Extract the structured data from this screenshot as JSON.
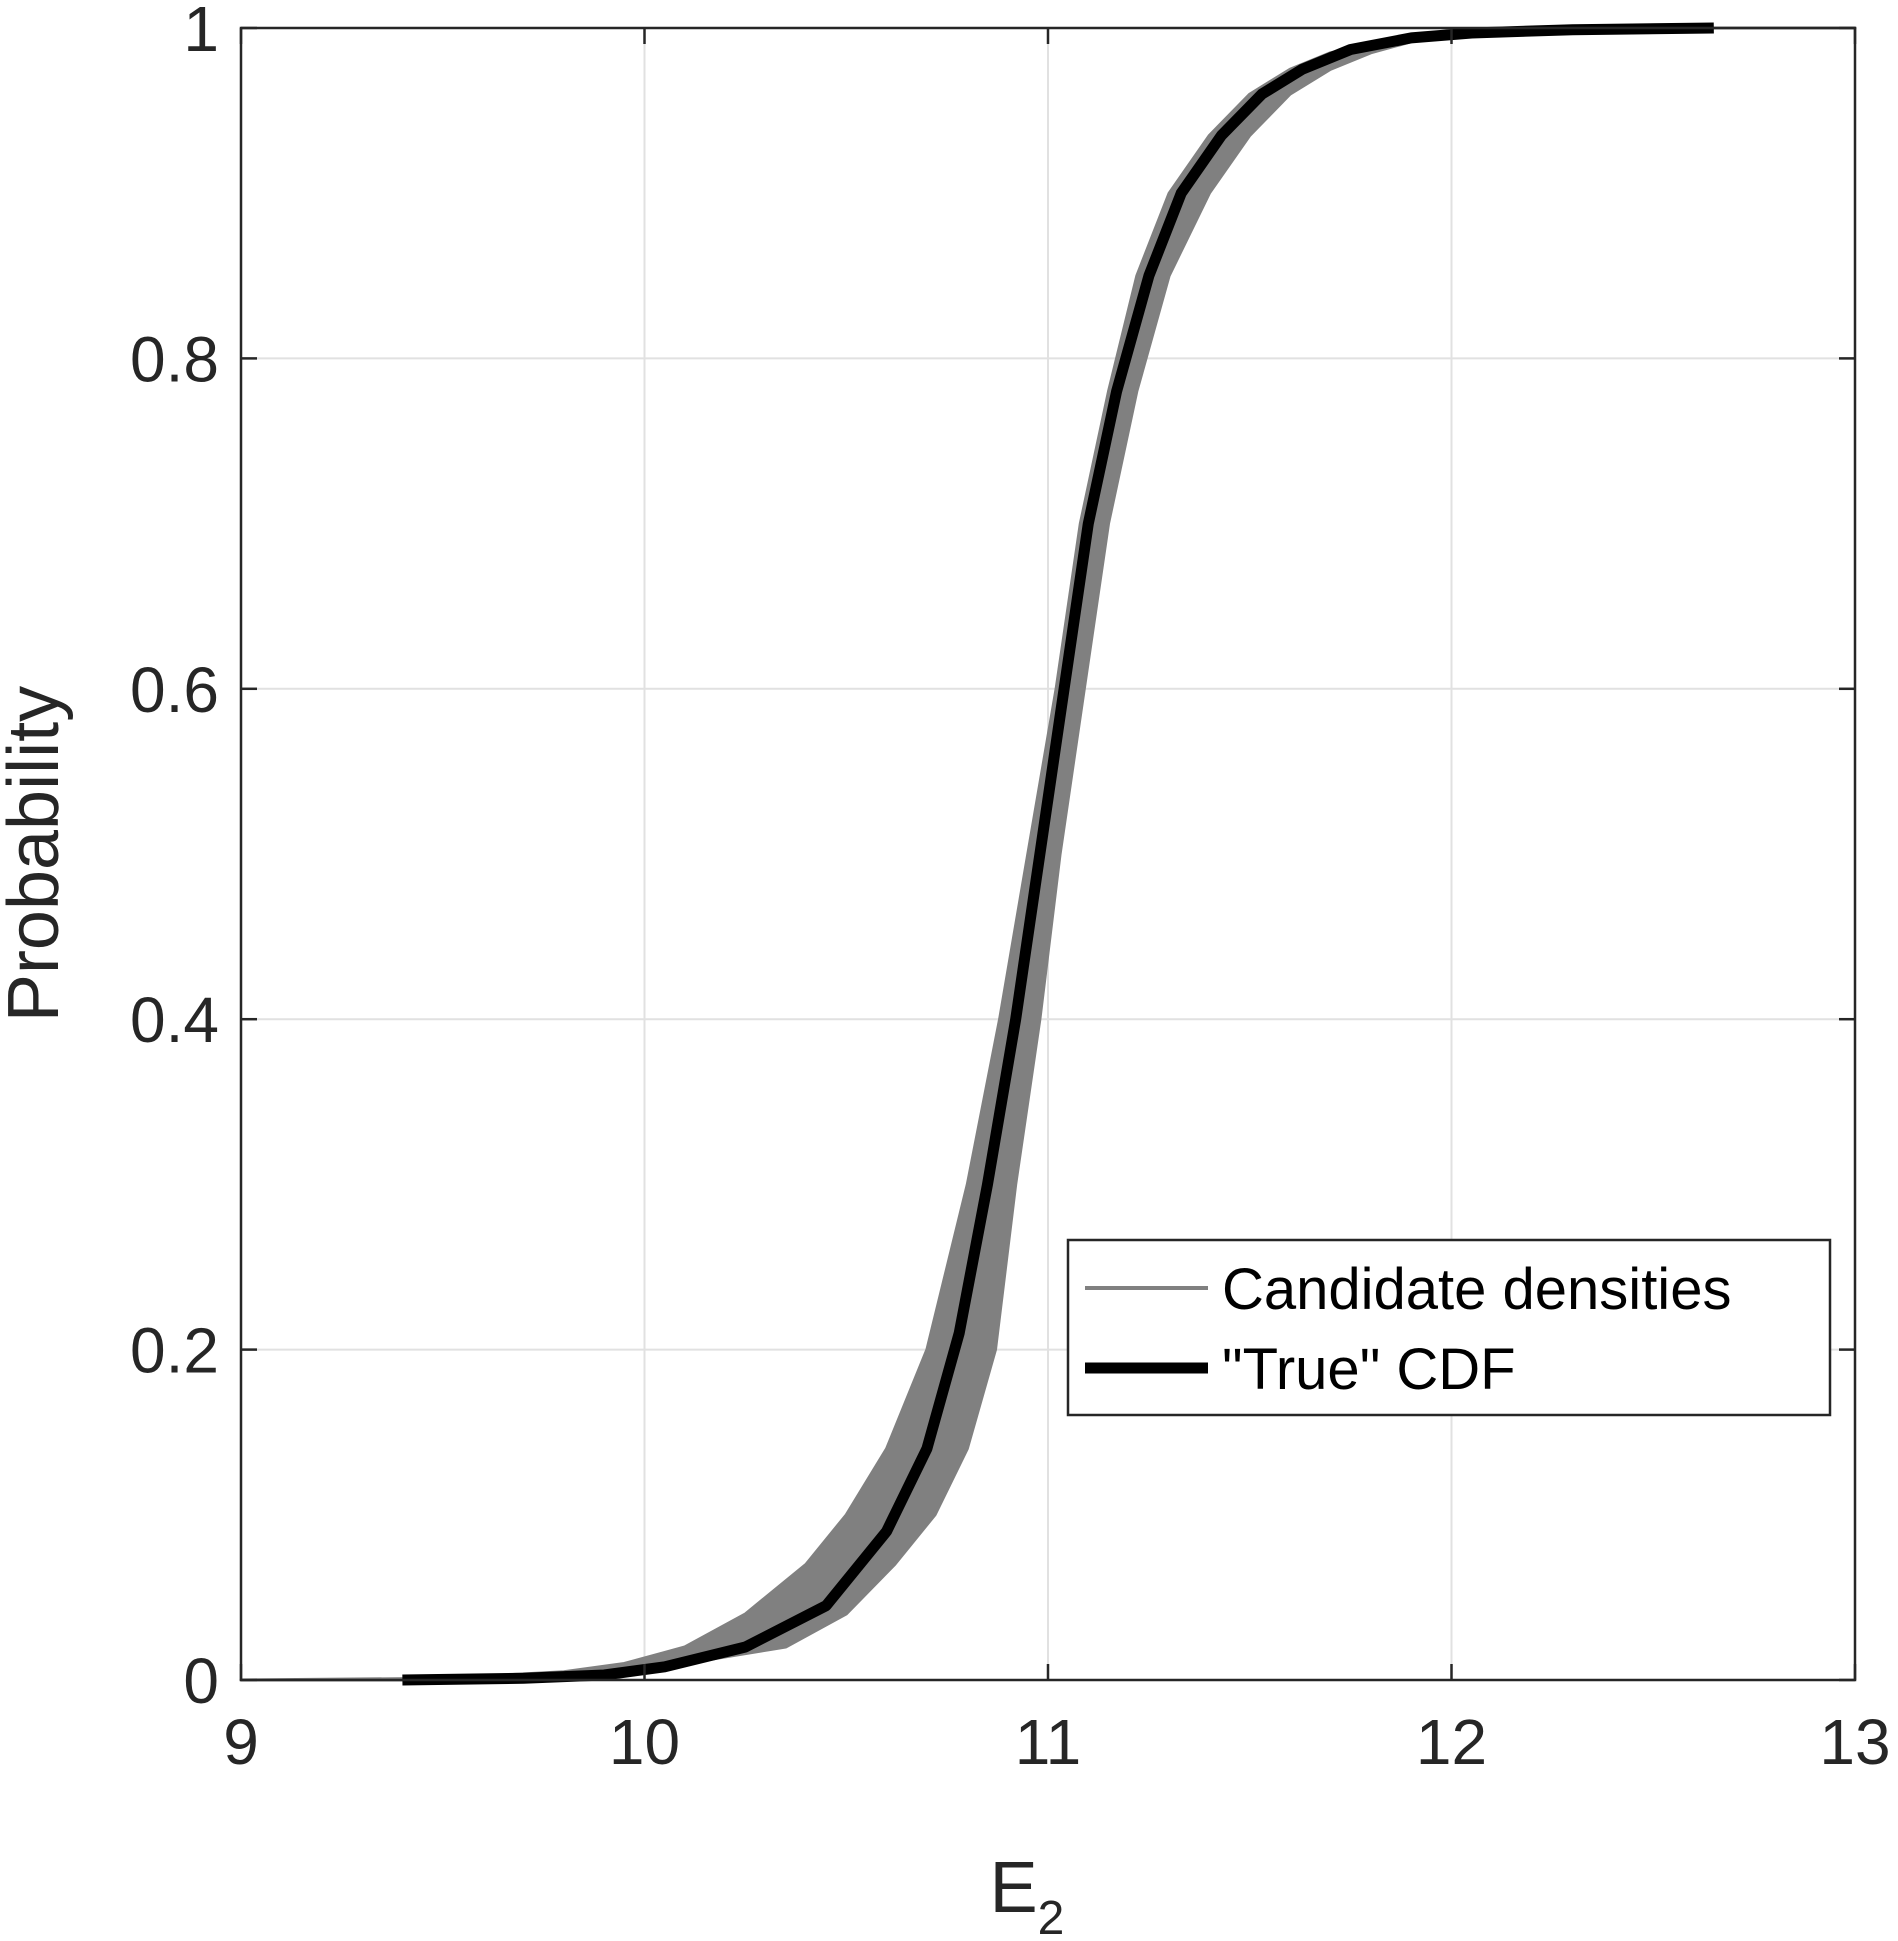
{
  "chart_data": {
    "type": "line",
    "xlabel": "E",
    "xlabel_subscript": "2",
    "ylabel": "Probability",
    "xlim": [
      9,
      13
    ],
    "ylim": [
      0,
      1
    ],
    "xticks": [
      9,
      10,
      11,
      12,
      13
    ],
    "xtick_labels": [
      "9",
      "10",
      "11",
      "12",
      "13"
    ],
    "yticks": [
      0,
      0.2,
      0.4,
      0.6,
      0.8,
      1
    ],
    "ytick_labels": [
      "0",
      "0.2",
      "0.4",
      "0.6",
      "0.8",
      "1"
    ],
    "grid": true,
    "legend_position": "lower-right",
    "series": [
      {
        "name": "Candidate densities",
        "style": "band",
        "color": "#808080",
        "x_lower": [
          9.0,
          9.5,
          9.8,
          9.95,
          10.1,
          10.25,
          10.4,
          10.5,
          10.6,
          10.7,
          10.8,
          10.88,
          10.95,
          11.02,
          11.08,
          11.15,
          11.22,
          11.3,
          11.4,
          11.5,
          11.6,
          11.7,
          11.85,
          12.0,
          12.2,
          12.5,
          13.0
        ],
        "x_upper": [
          9.0,
          9.5,
          9.9,
          10.1,
          10.35,
          10.5,
          10.62,
          10.72,
          10.8,
          10.87,
          10.92,
          10.98,
          11.03,
          11.09,
          11.15,
          11.22,
          11.3,
          11.4,
          11.5,
          11.6,
          11.7,
          11.8,
          11.92,
          12.05,
          12.25,
          12.5,
          13.0
        ],
        "y": [
          0.0,
          0.001,
          0.005,
          0.01,
          0.02,
          0.04,
          0.07,
          0.1,
          0.14,
          0.2,
          0.3,
          0.4,
          0.5,
          0.6,
          0.7,
          0.78,
          0.85,
          0.9,
          0.935,
          0.96,
          0.975,
          0.985,
          0.993,
          0.997,
          0.999,
          1.0,
          1.0
        ]
      },
      {
        "name": "\"True\" CDF",
        "style": "line",
        "color": "#000000",
        "x": [
          9.4,
          9.7,
          9.9,
          10.05,
          10.25,
          10.45,
          10.6,
          10.7,
          10.78,
          10.85,
          10.92,
          10.98,
          11.04,
          11.1,
          11.17,
          11.25,
          11.33,
          11.43,
          11.53,
          11.63,
          11.75,
          11.9,
          12.05,
          12.3,
          12.65
        ],
        "y": [
          0.0,
          0.001,
          0.003,
          0.008,
          0.02,
          0.045,
          0.09,
          0.14,
          0.21,
          0.3,
          0.4,
          0.5,
          0.6,
          0.7,
          0.78,
          0.85,
          0.9,
          0.935,
          0.96,
          0.975,
          0.987,
          0.994,
          0.997,
          0.999,
          1.0
        ]
      }
    ]
  }
}
